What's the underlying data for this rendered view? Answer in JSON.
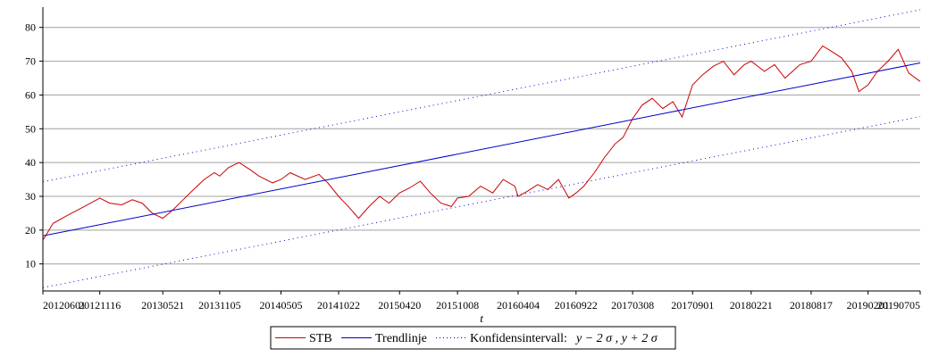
{
  "chart_data": {
    "type": "line",
    "xlabel": "t",
    "ylabel": "",
    "ylim": [
      2,
      86
    ],
    "y_ticks": [
      10,
      20,
      30,
      40,
      50,
      60,
      70,
      80
    ],
    "x_tick_labels": [
      "20120601",
      "20121116",
      "20130521",
      "20131105",
      "20140505",
      "20141022",
      "20150420",
      "20151008",
      "20160404",
      "20160922",
      "20170308",
      "20170901",
      "20180221",
      "20180817",
      "20190201",
      "20190705"
    ],
    "grid": "horizontal",
    "legend_position": "bottom",
    "series": [
      {
        "name": "STB",
        "color": "#cc0000",
        "style": "solid",
        "points": [
          [
            "20120601",
            17
          ],
          [
            "20120701",
            22
          ],
          [
            "20120815",
            24.5
          ],
          [
            "20121001",
            27
          ],
          [
            "20121116",
            29.5
          ],
          [
            "20121215",
            28
          ],
          [
            "20130120",
            27.5
          ],
          [
            "20130220",
            29
          ],
          [
            "20130321",
            28
          ],
          [
            "20130420",
            25
          ],
          [
            "20130521",
            23.5
          ],
          [
            "20130620",
            26
          ],
          [
            "20130720",
            29
          ],
          [
            "20130820",
            32
          ],
          [
            "20130920",
            35
          ],
          [
            "20131020",
            37
          ],
          [
            "20131105",
            36
          ],
          [
            "20131201",
            38.5
          ],
          [
            "20140101",
            40
          ],
          [
            "20140201",
            38
          ],
          [
            "20140301",
            36
          ],
          [
            "20140410",
            34
          ],
          [
            "20140505",
            35
          ],
          [
            "20140601",
            37
          ],
          [
            "20140715",
            35
          ],
          [
            "20140825",
            36.5
          ],
          [
            "20140920",
            34
          ],
          [
            "20141022",
            30
          ],
          [
            "20141120",
            27
          ],
          [
            "20141220",
            23.5
          ],
          [
            "20150120",
            27
          ],
          [
            "20150220",
            30
          ],
          [
            "20150320",
            28
          ],
          [
            "20150420",
            31
          ],
          [
            "20150520",
            32.5
          ],
          [
            "20150620",
            34.5
          ],
          [
            "20150720",
            31
          ],
          [
            "20150820",
            28
          ],
          [
            "20150920",
            27
          ],
          [
            "20151008",
            29.5
          ],
          [
            "20151110",
            30
          ],
          [
            "20151215",
            33
          ],
          [
            "20160120",
            31
          ],
          [
            "20160220",
            35
          ],
          [
            "20160325",
            33
          ],
          [
            "20160404",
            30
          ],
          [
            "20160501",
            31.5
          ],
          [
            "20160601",
            33.5
          ],
          [
            "20160701",
            32
          ],
          [
            "20160801",
            35
          ],
          [
            "20160901",
            29.5
          ],
          [
            "20160922",
            31
          ],
          [
            "20161015",
            33
          ],
          [
            "20161115",
            37
          ],
          [
            "20161215",
            41.5
          ],
          [
            "20170115",
            45.5
          ],
          [
            "20170208",
            47.5
          ],
          [
            "20170308",
            53
          ],
          [
            "20170405",
            57
          ],
          [
            "20170505",
            59
          ],
          [
            "20170605",
            56
          ],
          [
            "20170705",
            58
          ],
          [
            "20170801",
            53.5
          ],
          [
            "20170901",
            63
          ],
          [
            "20171001",
            66
          ],
          [
            "20171101",
            68.5
          ],
          [
            "20171201",
            70
          ],
          [
            "20180101",
            66
          ],
          [
            "20180201",
            69
          ],
          [
            "20180221",
            70
          ],
          [
            "20180401",
            67
          ],
          [
            "20180501",
            69
          ],
          [
            "20180601",
            65
          ],
          [
            "20180715",
            69
          ],
          [
            "20180817",
            70
          ],
          [
            "20180920",
            74.5
          ],
          [
            "20181015",
            73
          ],
          [
            "20181115",
            71
          ],
          [
            "20181215",
            67
          ],
          [
            "20190105",
            61
          ],
          [
            "20190201",
            63
          ],
          [
            "20190301",
            67
          ],
          [
            "20190401",
            70
          ],
          [
            "20190501",
            73.5
          ],
          [
            "20190601",
            66.5
          ],
          [
            "20190705",
            64
          ]
        ]
      },
      {
        "name": "Trendlinje",
        "color": "#0000cc",
        "style": "solid",
        "points": [
          [
            "20120601",
            18.3
          ],
          [
            "20190705",
            69.5
          ]
        ]
      },
      {
        "name": "Konfidensintervall:",
        "color": "#0000cc",
        "style": "dotted",
        "points": [
          [
            "20120601",
            34.3
          ],
          [
            "20190705",
            85.2
          ]
        ]
      },
      {
        "name": "",
        "color": "#0000cc",
        "style": "dotted",
        "points": [
          [
            "20120601",
            3
          ],
          [
            "20190705",
            53.6
          ]
        ]
      }
    ],
    "legend": {
      "items": [
        {
          "label": "STB",
          "color": "#cc0000",
          "style": "solid"
        },
        {
          "label": "Trendlinje",
          "color": "#0000cc",
          "style": "solid"
        },
        {
          "label": "Konfidensintervall:",
          "math": "y − 2 σ , y + 2 σ",
          "color": "#0000cc",
          "style": "dotted"
        }
      ]
    }
  }
}
